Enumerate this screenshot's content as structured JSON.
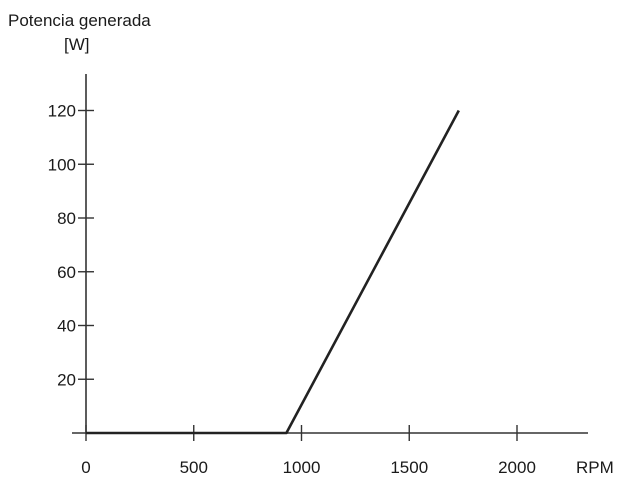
{
  "chart_data": {
    "type": "line",
    "ylabel_line1": "Potencia generada",
    "ylabel_line2": "[W]",
    "xlabel": "RPM",
    "x_ticks": [
      0,
      500,
      1000,
      1500,
      2000
    ],
    "y_ticks": [
      20,
      40,
      60,
      80,
      100,
      120
    ],
    "x": [
      0,
      930,
      1730
    ],
    "y": [
      0,
      0,
      120
    ],
    "xlim": [
      0,
      2300
    ],
    "ylim": [
      0,
      130
    ],
    "grid": false,
    "line_color": "#222222"
  }
}
